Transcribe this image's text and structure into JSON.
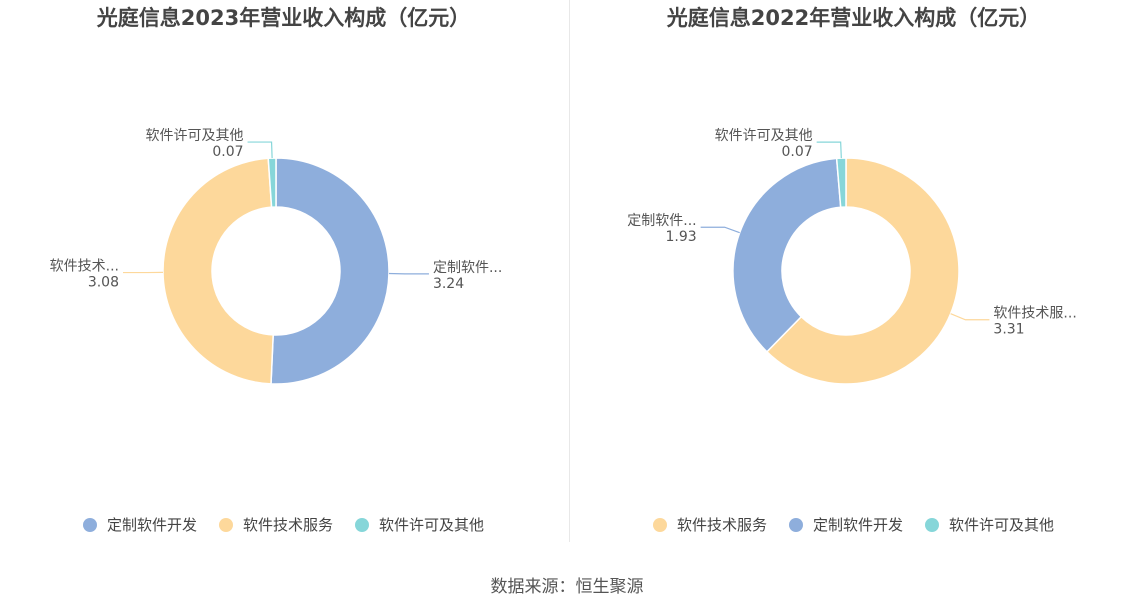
{
  "colors": {
    "定制软件开发": "#8eaedc",
    "软件技术服务": "#fdd89b",
    "软件许可及其他": "#86d6d9"
  },
  "charts": [
    {
      "type": "pie",
      "title": "光庭信息2023年营业收入构成（亿元）",
      "slices": [
        {
          "name": "定制软件开发",
          "label": "定制软件...",
          "value": 3.24,
          "value_text": "3.24"
        },
        {
          "name": "软件技术服务",
          "label": "软件技术...",
          "value": 3.08,
          "value_text": "3.08"
        },
        {
          "name": "软件许可及其他",
          "label": "软件许可及其他",
          "value": 0.07,
          "value_text": "0.07"
        }
      ],
      "legend": [
        "定制软件开发",
        "软件技术服务",
        "软件许可及其他"
      ]
    },
    {
      "type": "pie",
      "title": "光庭信息2022年营业收入构成（亿元）",
      "slices": [
        {
          "name": "软件技术服务",
          "label": "软件技术服...",
          "value": 3.31,
          "value_text": "3.31"
        },
        {
          "name": "定制软件开发",
          "label": "定制软件...",
          "value": 1.93,
          "value_text": "1.93"
        },
        {
          "name": "软件许可及其他",
          "label": "软件许可及其他",
          "value": 0.07,
          "value_text": "0.07"
        }
      ],
      "legend": [
        "软件技术服务",
        "定制软件开发",
        "软件许可及其他"
      ]
    }
  ],
  "source": "数据来源：恒生聚源"
}
